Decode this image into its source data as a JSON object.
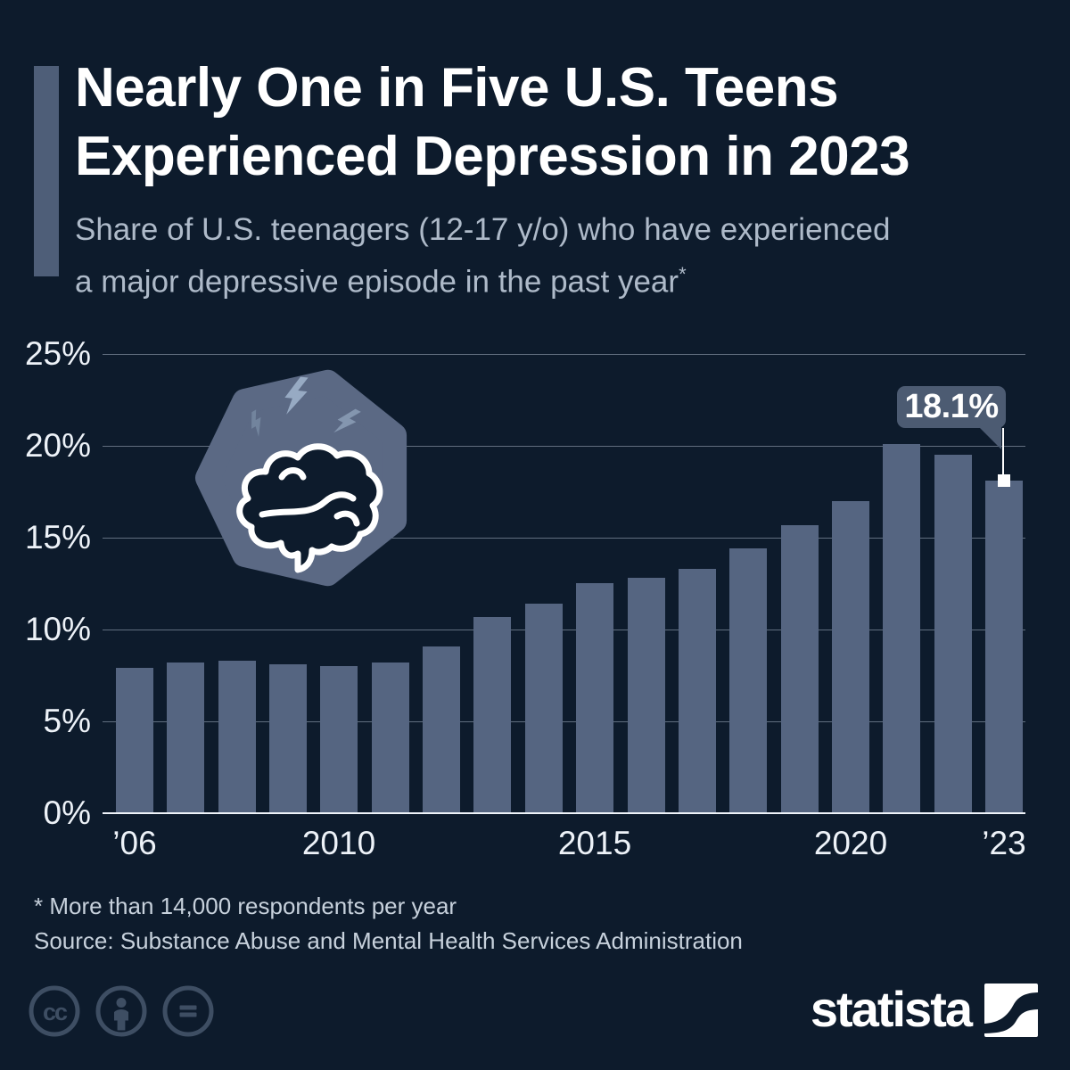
{
  "page": {
    "background_color": "#0d1b2c"
  },
  "header": {
    "title_line1": "Nearly One in Five U.S. Teens",
    "title_line2": "Experienced Depression in 2023",
    "subtitle_line1": "Share of U.S. teenagers (12-17 y/o) who have experienced",
    "subtitle_line2": "a major depressive episode in the past year",
    "footnote_marker": "*"
  },
  "chart_data": {
    "type": "bar",
    "title": "Share of U.S. teenagers (12-17 y/o) who have experienced a major depressive episode in the past year",
    "unit": "percent",
    "categories": [
      "2006",
      "2007",
      "2008",
      "2009",
      "2010",
      "2011",
      "2012",
      "2013",
      "2014",
      "2015",
      "2016",
      "2017",
      "2018",
      "2019",
      "2020",
      "2021",
      "2022",
      "2023"
    ],
    "values": [
      7.9,
      8.2,
      8.3,
      8.1,
      8.0,
      8.2,
      9.1,
      10.7,
      11.4,
      12.5,
      12.8,
      13.3,
      14.4,
      15.7,
      17.0,
      20.1,
      19.5,
      18.1
    ],
    "ylim": [
      0,
      25
    ],
    "yticks": [
      0,
      5,
      10,
      15,
      20,
      25
    ],
    "ytick_suffix": "%",
    "xticks": [
      {
        "label": "’06",
        "bar_index": 0
      },
      {
        "label": "2010",
        "bar_index": 4
      },
      {
        "label": "2015",
        "bar_index": 9
      },
      {
        "label": "2020",
        "bar_index": 14
      },
      {
        "label": "’23",
        "bar_index": 17
      }
    ],
    "annotation": {
      "label": "18.1%",
      "bar_index": 17,
      "value": 18.1
    },
    "grid": "horizontal",
    "legend": "none",
    "bar_color": "#556581",
    "axis_color": "#eef3f9",
    "gridline_color": "rgba(182,194,209,0.5)",
    "tick_label_color": "#edf2f8"
  },
  "badge": {
    "icon": "brain-with-lightning",
    "shape": "rounded-heptagon",
    "fill": "#5b6984"
  },
  "callout": {
    "fill": "#4c5b72",
    "text_color": "#ffffff"
  },
  "footer": {
    "footnote": "* More than 14,000 respondents per year",
    "source": "Source: Substance Abuse and Mental Health Services Administration",
    "license_icons": [
      "cc-icon",
      "cc-by-icon",
      "cc-nd-icon"
    ]
  },
  "branding": {
    "logo_text": "statista"
  },
  "colors": {
    "background": "#0d1b2c",
    "accent_bar": "#4e5e78",
    "title": "#ffffff",
    "subtitle": "#aebac9",
    "footer_text": "#c7d1dc",
    "license_icon": "#3e4e63"
  }
}
